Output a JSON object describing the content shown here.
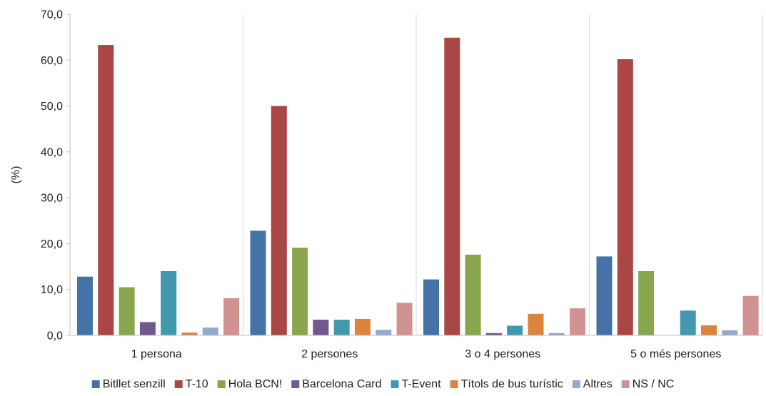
{
  "chart_data": {
    "type": "bar",
    "title": "",
    "xlabel": "",
    "ylabel": "(%)",
    "ylim": [
      0,
      70
    ],
    "y_ticks": [
      "0,0",
      "10,0",
      "20,0",
      "30,0",
      "40,0",
      "50,0",
      "60,0",
      "70,0"
    ],
    "categories": [
      "1 persona",
      "2 persones",
      "3 o 4 persones",
      "5 o més persones"
    ],
    "grid": "vertical lines between categories",
    "legend_position": "bottom",
    "series": [
      {
        "name": "Bitllet senzill",
        "color": "#4572A7",
        "values": [
          12.8,
          22.8,
          12.2,
          17.2
        ]
      },
      {
        "name": "T-10",
        "color": "#AA4643",
        "values": [
          63.3,
          50.0,
          64.9,
          60.2
        ]
      },
      {
        "name": "Hola BCN!",
        "color": "#89A54E",
        "values": [
          10.5,
          19.1,
          17.6,
          14.0
        ]
      },
      {
        "name": "Barcelona Card",
        "color": "#71588F",
        "values": [
          2.9,
          3.4,
          0.5,
          0.0
        ]
      },
      {
        "name": "T-Event",
        "color": "#4198AF",
        "values": [
          14.0,
          3.4,
          2.1,
          5.4
        ]
      },
      {
        "name": "Títols de bus turístic",
        "color": "#DB843D",
        "values": [
          0.6,
          3.6,
          4.7,
          2.2
        ]
      },
      {
        "name": "Altres",
        "color": "#93A9CF",
        "values": [
          1.7,
          1.2,
          0.5,
          1.1
        ]
      },
      {
        "name": "NS / NC",
        "color": "#D19392",
        "values": [
          8.1,
          7.1,
          5.9,
          8.6
        ]
      }
    ]
  }
}
